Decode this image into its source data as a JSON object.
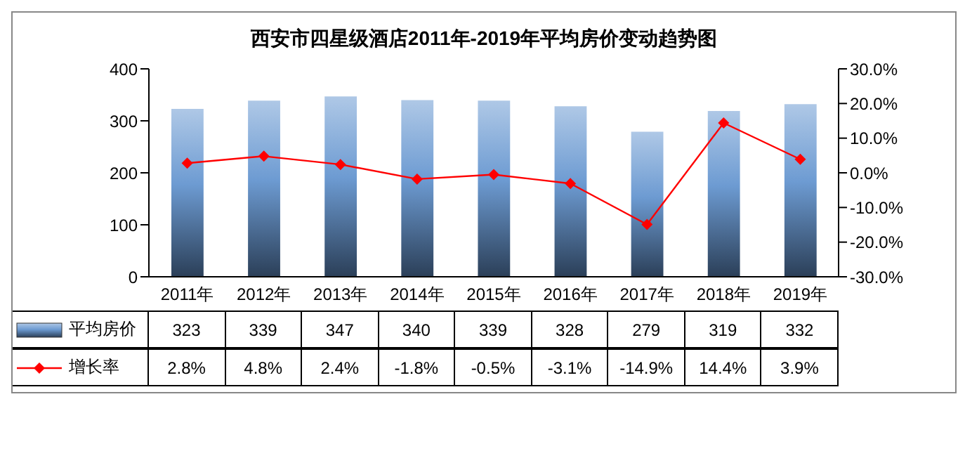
{
  "chart_data": {
    "type": "bar",
    "title": "西安市四星级酒店2011年-2019年平均房价变动趋势图",
    "categories": [
      "2011年",
      "2012年",
      "2013年",
      "2014年",
      "2015年",
      "2016年",
      "2017年",
      "2018年",
      "2019年"
    ],
    "series": [
      {
        "name": "平均房价",
        "color": "#6d9bd2",
        "values": [
          323,
          339,
          347,
          340,
          339,
          328,
          279,
          319,
          332
        ]
      },
      {
        "name": "增长率",
        "type": "line",
        "axis": "y2",
        "color": "#ff0000",
        "values": [
          2.8,
          4.8,
          2.4,
          -1.8,
          -0.5,
          -3.1,
          -14.9,
          14.4,
          3.9
        ],
        "value_labels": [
          "2.8%",
          "4.8%",
          "2.4%",
          "-1.8%",
          "-0.5%",
          "-3.1%",
          "-14.9%",
          "14.4%",
          "3.9%"
        ]
      }
    ],
    "ylim": [
      0,
      400
    ],
    "yticks": [
      0,
      100,
      200,
      300,
      400
    ],
    "y2lim": [
      -30,
      30
    ],
    "y2ticks": [
      {
        "value": -30,
        "label": "-30.0%"
      },
      {
        "value": -20,
        "label": "-20.0%"
      },
      {
        "value": -10,
        "label": "-10.0%"
      },
      {
        "value": 0,
        "label": "0.0%"
      },
      {
        "value": 10,
        "label": "10.0%"
      },
      {
        "value": 20,
        "label": "20.0%"
      },
      {
        "value": 30,
        "label": "30.0%"
      }
    ],
    "marker": "diamond",
    "line_style": "solid",
    "data_labels": true,
    "legend": "bottom"
  }
}
